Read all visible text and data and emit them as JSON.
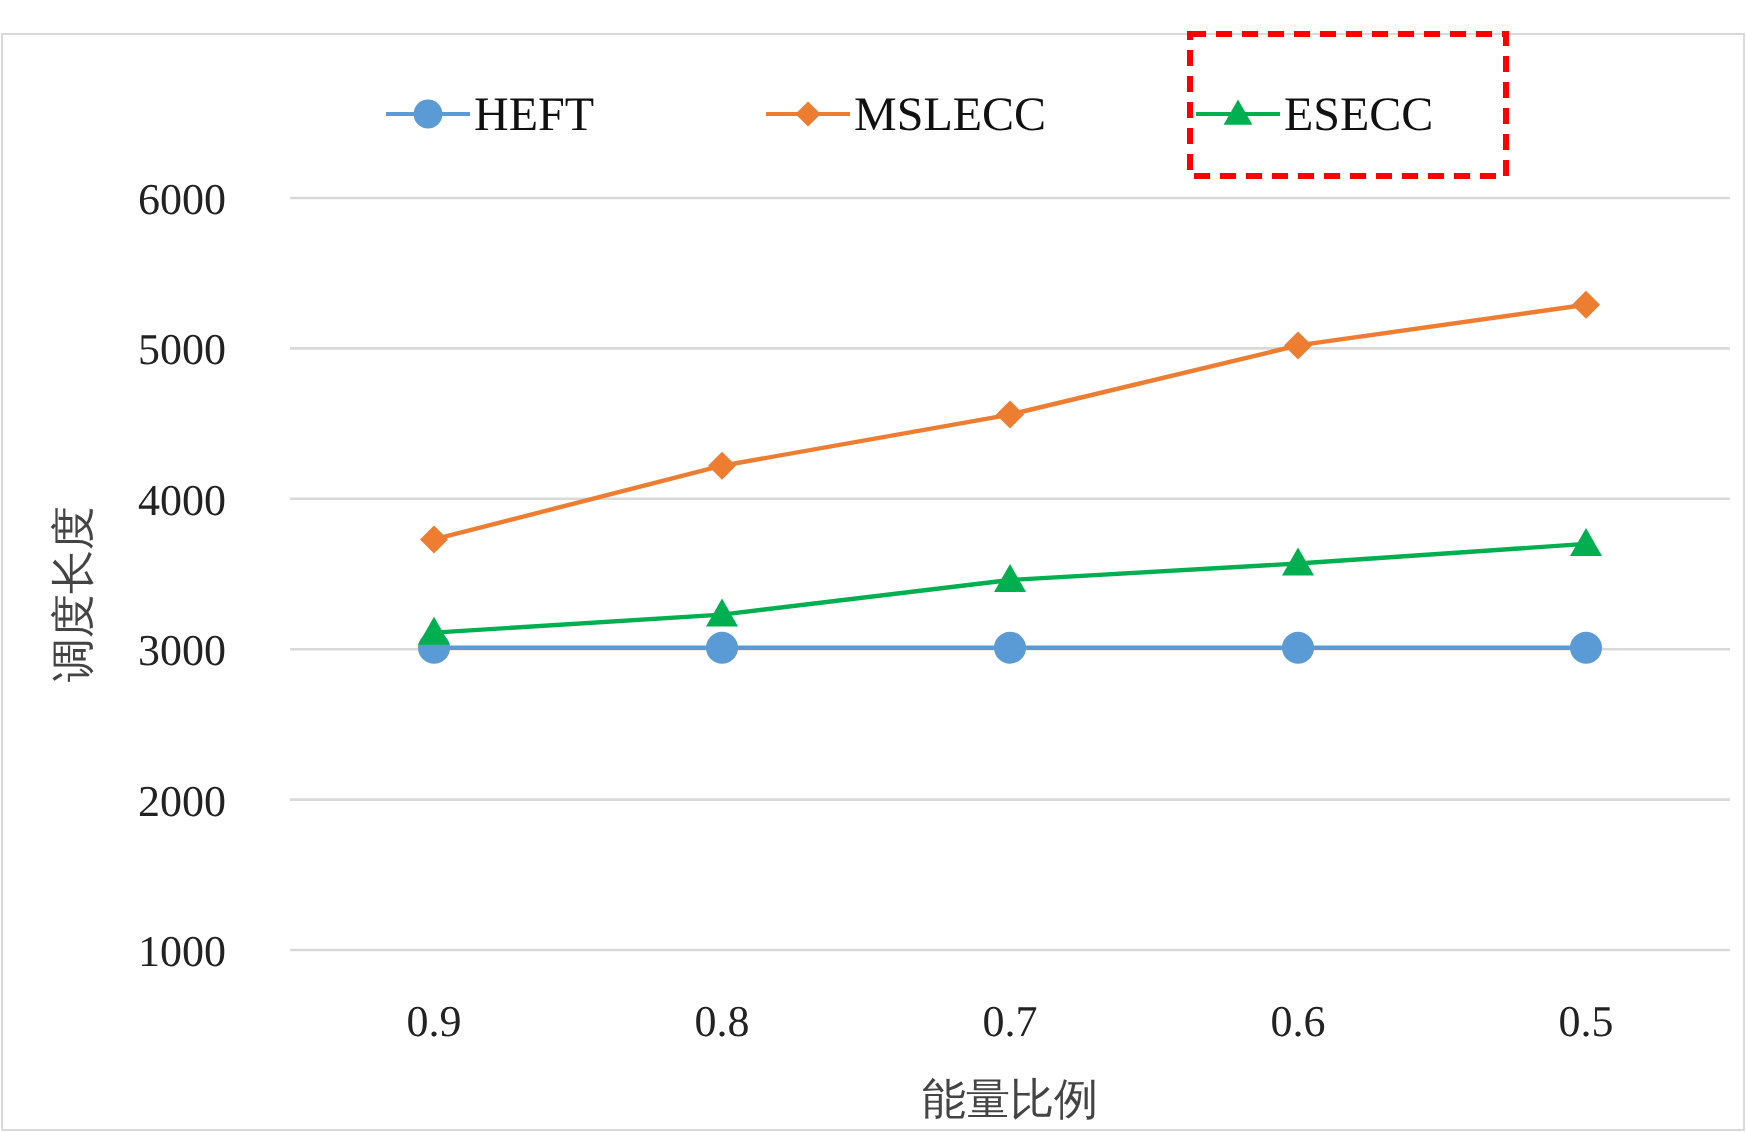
{
  "chart_data": {
    "type": "line",
    "xlabel": "能量比例",
    "ylabel": "调度长度",
    "categories": [
      "0.9",
      "0.8",
      "0.7",
      "0.6",
      "0.5"
    ],
    "ylim": [
      1000,
      6000
    ],
    "yticks": [
      1000,
      2000,
      3000,
      4000,
      5000,
      6000
    ],
    "grid": "y",
    "legend": "top",
    "series": [
      {
        "name": "HEFT",
        "color": "#5b9bd5",
        "marker": "circle",
        "values": [
          3010,
          3010,
          3010,
          3010,
          3010
        ]
      },
      {
        "name": "MSLECC",
        "color": "#ed7d31",
        "marker": "diamond",
        "values": [
          3730,
          4220,
          4560,
          5020,
          5290
        ]
      },
      {
        "name": "ESECC",
        "color": "#00b050",
        "marker": "triangle",
        "values": [
          3110,
          3230,
          3460,
          3570,
          3700
        ]
      }
    ]
  }
}
